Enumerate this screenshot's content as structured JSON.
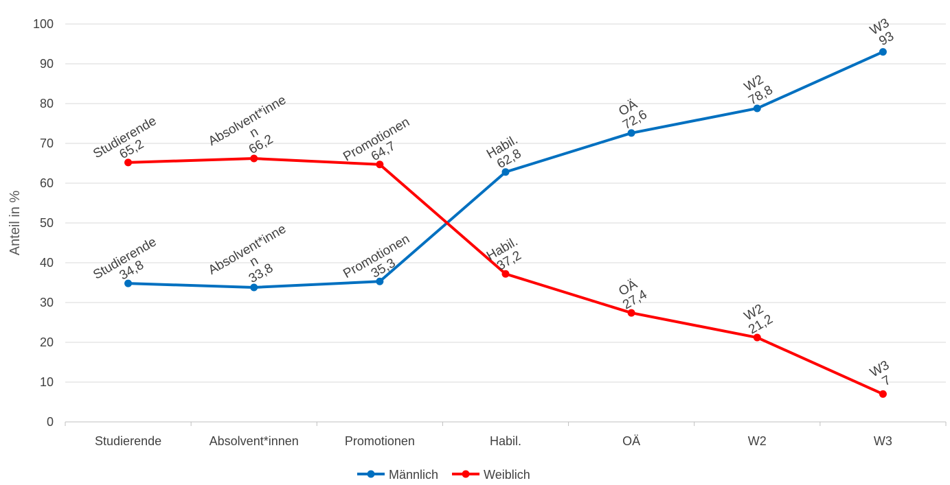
{
  "chart_data": {
    "type": "line",
    "title": "",
    "xlabel": "",
    "ylabel": "Anteil in %",
    "ylim": [
      0,
      100
    ],
    "yticks": [
      0,
      10,
      20,
      30,
      40,
      50,
      60,
      70,
      80,
      90,
      100
    ],
    "grid": "horizontal",
    "legend_position": "bottom",
    "categories": [
      "Studierende",
      "Absolvent*innen",
      "Promotionen",
      "Habil.",
      "OÄ",
      "W2",
      "W3"
    ],
    "series": [
      {
        "name": "Männlich",
        "color": "#0070c0",
        "values": [
          34.8,
          33.8,
          35.3,
          62.8,
          72.6,
          78.8,
          93
        ],
        "labels": [
          [
            "Studierende",
            "34,8"
          ],
          [
            "Absolvent*inne",
            "n",
            "33,8"
          ],
          [
            "Promotionen",
            "35,3"
          ],
          [
            "Habil.",
            "62,8"
          ],
          [
            "OÄ",
            "72,6"
          ],
          [
            "W2",
            "78,8"
          ],
          [
            "W3",
            "93"
          ]
        ]
      },
      {
        "name": "Weiblich",
        "color": "#ff0000",
        "values": [
          65.2,
          66.2,
          64.7,
          37.2,
          27.4,
          21.2,
          7
        ],
        "labels": [
          [
            "Studierende",
            "65,2"
          ],
          [
            "Absolvent*inne",
            "n",
            "66,2"
          ],
          [
            "Promotionen",
            "64,7"
          ],
          [
            "Habil.",
            "37,2"
          ],
          [
            "OÄ",
            "27,4"
          ],
          [
            "W2",
            "21,2"
          ],
          [
            "W3",
            "7"
          ]
        ]
      }
    ]
  }
}
